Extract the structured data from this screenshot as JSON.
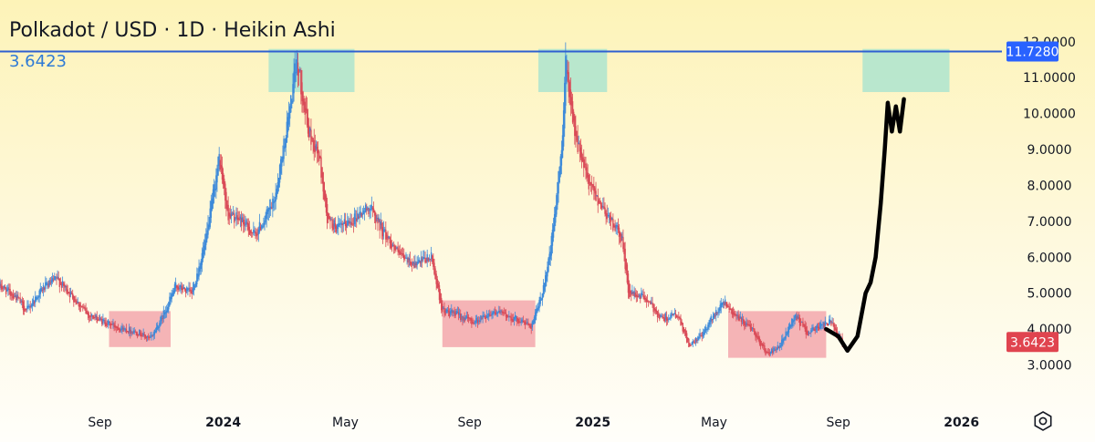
{
  "header": {
    "title": "Polkadot / USD · 1D · Heikin Ashi",
    "last_value": "3.6423"
  },
  "settings_icon": "gear-icon",
  "colors": {
    "up": "#3d8ad9",
    "down": "#d94a57",
    "projection": "#000000",
    "resistance_line": "#2e5fd1",
    "top_zone": "#a8e3cf",
    "bottom_zone": "#f3a7ad",
    "price_badge": "#e0444f",
    "line_badge": "#2962ff"
  },
  "chart_data": {
    "type": "candlestick",
    "title": "Polkadot / USD · 1D · Heikin Ashi",
    "y_ticks": [
      "3.0000",
      "4.0000",
      "5.0000",
      "6.0000",
      "7.0000",
      "8.0000",
      "9.0000",
      "10.0000",
      "11.0000",
      "12.0000"
    ],
    "ylim": [
      2.0,
      12.4
    ],
    "x_ticks": [
      {
        "label": "Sep",
        "date": "2023-09-01",
        "bold": false
      },
      {
        "label": "2024",
        "date": "2024-01-01",
        "bold": true
      },
      {
        "label": "May",
        "date": "2024-05-01",
        "bold": false
      },
      {
        "label": "Sep",
        "date": "2024-09-01",
        "bold": false
      },
      {
        "label": "2025",
        "date": "2025-01-01",
        "bold": true
      },
      {
        "label": "May",
        "date": "2025-05-01",
        "bold": false
      },
      {
        "label": "Sep",
        "date": "2025-09-01",
        "bold": false
      },
      {
        "label": "2026",
        "date": "2026-01-01",
        "bold": true
      }
    ],
    "xlim": [
      "2023-05-25",
      "2026-02-10"
    ],
    "price_path": [
      [
        "2023-05-25",
        5.2
      ],
      [
        "2023-06-10",
        4.9
      ],
      [
        "2023-06-20",
        4.5
      ],
      [
        "2023-07-05",
        5.1
      ],
      [
        "2023-07-20",
        5.4
      ],
      [
        "2023-08-05",
        4.9
      ],
      [
        "2023-08-20",
        4.4
      ],
      [
        "2023-09-05",
        4.2
      ],
      [
        "2023-09-25",
        4.0
      ],
      [
        "2023-10-10",
        3.9
      ],
      [
        "2023-10-20",
        3.7
      ],
      [
        "2023-11-01",
        4.3
      ],
      [
        "2023-11-15",
        5.2
      ],
      [
        "2023-12-01",
        5.0
      ],
      [
        "2023-12-15",
        6.5
      ],
      [
        "2023-12-28",
        8.8
      ],
      [
        "2024-01-05",
        7.2
      ],
      [
        "2024-01-20",
        7.0
      ],
      [
        "2024-02-01",
        6.6
      ],
      [
        "2024-02-20",
        7.5
      ],
      [
        "2024-03-05",
        9.8
      ],
      [
        "2024-03-14",
        11.5
      ],
      [
        "2024-03-25",
        9.5
      ],
      [
        "2024-04-05",
        8.8
      ],
      [
        "2024-04-13",
        7.0
      ],
      [
        "2024-04-25",
        6.8
      ],
      [
        "2024-05-10",
        7.1
      ],
      [
        "2024-05-25",
        7.4
      ],
      [
        "2024-06-10",
        6.6
      ],
      [
        "2024-06-25",
        6.0
      ],
      [
        "2024-07-10",
        5.8
      ],
      [
        "2024-07-25",
        6.0
      ],
      [
        "2024-08-05",
        4.5
      ],
      [
        "2024-08-20",
        4.4
      ],
      [
        "2024-09-05",
        4.2
      ],
      [
        "2024-09-25",
        4.5
      ],
      [
        "2024-10-15",
        4.3
      ],
      [
        "2024-11-01",
        4.1
      ],
      [
        "2024-11-10",
        4.8
      ],
      [
        "2024-11-20",
        6.2
      ],
      [
        "2024-12-01",
        9.0
      ],
      [
        "2024-12-05",
        11.5
      ],
      [
        "2024-12-15",
        9.3
      ],
      [
        "2024-12-28",
        8.0
      ],
      [
        "2025-01-15",
        7.2
      ],
      [
        "2025-01-30",
        6.5
      ],
      [
        "2025-02-05",
        5.0
      ],
      [
        "2025-02-20",
        4.9
      ],
      [
        "2025-03-10",
        4.3
      ],
      [
        "2025-03-25",
        4.4
      ],
      [
        "2025-04-07",
        3.5
      ],
      [
        "2025-04-20",
        3.9
      ],
      [
        "2025-05-10",
        4.8
      ],
      [
        "2025-05-25",
        4.3
      ],
      [
        "2025-06-10",
        3.9
      ],
      [
        "2025-06-22",
        3.3
      ],
      [
        "2025-07-05",
        3.5
      ],
      [
        "2025-07-20",
        4.4
      ],
      [
        "2025-08-01",
        3.9
      ],
      [
        "2025-08-15",
        4.1
      ],
      [
        "2025-08-25",
        4.2
      ],
      [
        "2025-09-05",
        3.64
      ]
    ],
    "projection_path": [
      [
        "2025-08-20",
        4.0
      ],
      [
        "2025-09-01",
        3.8
      ],
      [
        "2025-09-10",
        3.4
      ],
      [
        "2025-09-20",
        3.8
      ],
      [
        "2025-09-28",
        5.0
      ],
      [
        "2025-10-03",
        5.3
      ],
      [
        "2025-10-08",
        6.0
      ],
      [
        "2025-10-13",
        7.5
      ],
      [
        "2025-10-17",
        9.0
      ],
      [
        "2025-10-20",
        10.3
      ],
      [
        "2025-10-24",
        9.5
      ],
      [
        "2025-10-28",
        10.2
      ],
      [
        "2025-11-01",
        9.5
      ],
      [
        "2025-11-05",
        10.4
      ]
    ],
    "resistance_line": {
      "value": 11.728,
      "label": "11.7280"
    },
    "current_price": {
      "value": 3.6423,
      "label": "3.6423"
    },
    "zones": [
      {
        "kind": "top",
        "start": "2024-02-15",
        "end": "2024-05-10",
        "low": 10.6,
        "high": 11.8
      },
      {
        "kind": "top",
        "start": "2024-11-08",
        "end": "2025-01-15",
        "low": 10.6,
        "high": 11.8
      },
      {
        "kind": "top",
        "start": "2025-09-25",
        "end": "2025-12-20",
        "low": 10.6,
        "high": 11.8
      },
      {
        "kind": "bottom",
        "start": "2023-09-10",
        "end": "2023-11-10",
        "low": 3.5,
        "high": 4.5
      },
      {
        "kind": "bottom",
        "start": "2024-08-05",
        "end": "2024-11-05",
        "low": 3.5,
        "high": 4.8
      },
      {
        "kind": "bottom",
        "start": "2025-05-15",
        "end": "2025-08-20",
        "low": 3.2,
        "high": 4.5
      }
    ]
  }
}
